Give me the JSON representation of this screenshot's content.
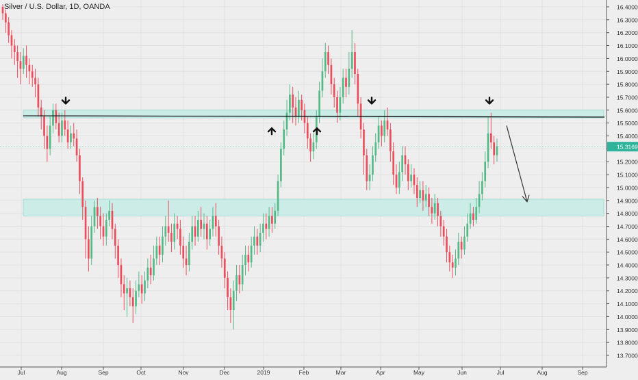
{
  "header": {
    "title": "Silver / U.S. Dollar, 1D, OANDA"
  },
  "chart_data": {
    "type": "candlestick",
    "y_ticks": [
      "16.40000",
      "16.30000",
      "16.20000",
      "16.10000",
      "16.00000",
      "15.90000",
      "15.80000",
      "15.70000",
      "15.60000",
      "15.50000",
      "15.40000",
      "15.30000",
      "15.20000",
      "15.10000",
      "15.00000",
      "14.90000",
      "14.80000",
      "14.70000",
      "14.60000",
      "14.50000",
      "14.40000",
      "14.30000",
      "14.20000",
      "14.10000",
      "14.00000",
      "13.90000",
      "13.80000",
      "13.70000"
    ],
    "x_ticks": [
      "Jul",
      "Aug",
      "Sep",
      "Oct",
      "Nov",
      "Dec",
      "2019",
      "Feb",
      "Mar",
      "Apr",
      "May",
      "Jun",
      "Jul",
      "Aug",
      "Sep"
    ],
    "ylim": [
      13.67,
      16.43
    ],
    "last_price_label": "15.31696",
    "last_price": 15.31696,
    "colors": {
      "up": "#53b987",
      "down": "#eb4d5c",
      "zone_fill": "#c9ece8",
      "zone_stroke": "#8fd3cc",
      "line": "#111111",
      "price_tag": "#2fb39a"
    },
    "zones": [
      {
        "name": "resistance-zone",
        "low": 15.54,
        "high": 15.6
      },
      {
        "name": "support-zone",
        "low": 14.78,
        "high": 14.91
      }
    ],
    "resistance_line": {
      "start": 15.556,
      "end": 15.546
    },
    "markers": [
      {
        "kind": "down-arrow",
        "date": "Aug",
        "price": 15.65
      },
      {
        "kind": "up-arrow",
        "date": "2019",
        "price": 15.46
      },
      {
        "kind": "up-arrow",
        "date": "Feb",
        "price": 15.46
      },
      {
        "kind": "down-arrow",
        "date": "Mar",
        "price": 15.65
      },
      {
        "kind": "down-arrow",
        "date": "Jun",
        "price": 15.65
      }
    ],
    "projection_arrow": {
      "from": 15.48,
      "to": 14.89
    },
    "candles": [
      [
        16.4,
        16.35,
        16.42,
        16.3
      ],
      [
        16.35,
        16.28,
        16.38,
        16.2
      ],
      [
        16.28,
        16.18,
        16.32,
        16.12
      ],
      [
        16.18,
        16.1,
        16.22,
        16.0
      ],
      [
        16.1,
        16.05,
        16.15,
        15.95
      ],
      [
        16.05,
        15.98,
        16.1,
        15.85
      ],
      [
        15.98,
        15.92,
        16.05,
        15.8
      ],
      [
        15.92,
        16.02,
        16.08,
        15.88
      ],
      [
        16.02,
        15.95,
        16.1,
        15.85
      ],
      [
        15.95,
        15.9,
        16.0,
        15.8
      ],
      [
        15.9,
        15.85,
        15.95,
        15.78
      ],
      [
        15.85,
        15.8,
        15.92,
        15.7
      ],
      [
        15.8,
        15.62,
        15.85,
        15.55
      ],
      [
        15.62,
        15.55,
        15.68,
        15.45
      ],
      [
        15.55,
        15.4,
        15.6,
        15.3
      ],
      [
        15.4,
        15.3,
        15.48,
        15.2
      ],
      [
        15.3,
        15.48,
        15.55,
        15.25
      ],
      [
        15.48,
        15.6,
        15.65,
        15.42
      ],
      [
        15.6,
        15.5,
        15.65,
        15.45
      ],
      [
        15.5,
        15.4,
        15.58,
        15.35
      ],
      [
        15.4,
        15.52,
        15.58,
        15.35
      ],
      [
        15.52,
        15.45,
        15.6,
        15.4
      ],
      [
        15.45,
        15.35,
        15.52,
        15.3
      ],
      [
        15.35,
        15.42,
        15.48,
        15.3
      ],
      [
        15.42,
        15.38,
        15.5,
        15.32
      ],
      [
        15.38,
        15.25,
        15.45,
        15.2
      ],
      [
        15.25,
        15.05,
        15.3,
        14.95
      ],
      [
        15.05,
        14.85,
        15.08,
        14.75
      ],
      [
        14.85,
        14.6,
        14.9,
        14.45
      ],
      [
        14.6,
        14.45,
        14.7,
        14.35
      ],
      [
        14.45,
        14.7,
        14.78,
        14.4
      ],
      [
        14.7,
        14.85,
        14.9,
        14.65
      ],
      [
        14.85,
        14.78,
        14.92,
        14.68
      ],
      [
        14.78,
        14.7,
        14.85,
        14.6
      ],
      [
        14.7,
        14.62,
        14.8,
        14.55
      ],
      [
        14.62,
        14.75,
        14.8,
        14.55
      ],
      [
        14.75,
        14.82,
        14.9,
        14.7
      ],
      [
        14.82,
        14.68,
        14.88,
        14.6
      ],
      [
        14.68,
        14.55,
        14.72,
        14.45
      ],
      [
        14.55,
        14.4,
        14.6,
        14.3
      ],
      [
        14.4,
        14.25,
        14.45,
        14.15
      ],
      [
        14.25,
        14.18,
        14.32,
        14.05
      ],
      [
        14.18,
        14.22,
        14.3,
        14.0
      ],
      [
        14.22,
        14.15,
        14.28,
        14.08
      ],
      [
        14.15,
        14.08,
        14.22,
        13.95
      ],
      [
        14.08,
        14.2,
        14.28,
        14.02
      ],
      [
        14.2,
        14.25,
        14.35,
        14.15
      ],
      [
        14.25,
        14.18,
        14.32,
        14.1
      ],
      [
        14.18,
        14.28,
        14.35,
        14.12
      ],
      [
        14.28,
        14.38,
        14.45,
        14.22
      ],
      [
        14.38,
        14.32,
        14.48,
        14.25
      ],
      [
        14.32,
        14.45,
        14.55,
        14.28
      ],
      [
        14.45,
        14.55,
        14.62,
        14.4
      ],
      [
        14.55,
        14.48,
        14.62,
        14.4
      ],
      [
        14.48,
        14.62,
        14.7,
        14.42
      ],
      [
        14.62,
        14.7,
        14.78,
        14.55
      ],
      [
        14.7,
        14.65,
        14.9,
        14.58
      ],
      [
        14.65,
        14.58,
        14.72,
        14.5
      ],
      [
        14.58,
        14.72,
        14.8,
        14.52
      ],
      [
        14.72,
        14.68,
        14.78,
        14.6
      ],
      [
        14.68,
        14.55,
        14.75,
        14.48
      ],
      [
        14.55,
        14.45,
        14.62,
        14.38
      ],
      [
        14.45,
        14.4,
        14.55,
        14.32
      ],
      [
        14.4,
        14.58,
        14.65,
        14.35
      ],
      [
        14.58,
        14.7,
        14.78,
        14.52
      ],
      [
        14.7,
        14.62,
        14.78,
        14.55
      ],
      [
        14.62,
        14.75,
        14.82,
        14.58
      ],
      [
        14.75,
        14.68,
        14.85,
        14.62
      ],
      [
        14.68,
        14.72,
        14.8,
        14.6
      ],
      [
        14.72,
        14.6,
        14.78,
        14.52
      ],
      [
        14.6,
        14.68,
        14.75,
        14.55
      ],
      [
        14.68,
        14.78,
        14.85,
        14.62
      ],
      [
        14.78,
        14.7,
        14.88,
        14.62
      ],
      [
        14.7,
        14.55,
        14.75,
        14.48
      ],
      [
        14.55,
        14.45,
        14.62,
        14.38
      ],
      [
        14.45,
        14.3,
        14.5,
        14.22
      ],
      [
        14.3,
        14.15,
        14.35,
        14.05
      ],
      [
        14.15,
        14.05,
        14.22,
        13.95
      ],
      [
        14.05,
        14.2,
        14.28,
        13.9
      ],
      [
        14.2,
        14.32,
        14.4,
        14.12
      ],
      [
        14.32,
        14.25,
        14.4,
        14.18
      ],
      [
        14.25,
        14.4,
        14.48,
        14.2
      ],
      [
        14.4,
        14.48,
        14.55,
        14.32
      ],
      [
        14.48,
        14.42,
        14.55,
        14.35
      ],
      [
        14.42,
        14.55,
        14.62,
        14.38
      ],
      [
        14.55,
        14.62,
        14.7,
        14.48
      ],
      [
        14.62,
        14.55,
        14.68,
        14.48
      ],
      [
        14.55,
        14.65,
        14.72,
        14.5
      ],
      [
        14.65,
        14.72,
        14.8,
        14.58
      ],
      [
        14.72,
        14.68,
        14.8,
        14.6
      ],
      [
        14.68,
        14.78,
        14.85,
        14.62
      ],
      [
        14.78,
        14.72,
        14.85,
        14.65
      ],
      [
        14.72,
        14.82,
        14.88,
        14.68
      ],
      [
        14.82,
        15.05,
        15.1,
        14.78
      ],
      [
        15.05,
        15.3,
        15.35,
        15.0
      ],
      [
        15.3,
        15.45,
        15.52,
        15.25
      ],
      [
        15.45,
        15.58,
        15.68,
        15.4
      ],
      [
        15.58,
        15.72,
        15.8,
        15.52
      ],
      [
        15.72,
        15.62,
        15.78,
        15.5
      ],
      [
        15.62,
        15.55,
        15.7,
        15.48
      ],
      [
        15.55,
        15.68,
        15.75,
        15.5
      ],
      [
        15.68,
        15.6,
        15.72,
        15.52
      ],
      [
        15.6,
        15.5,
        15.65,
        15.42
      ],
      [
        15.5,
        15.38,
        15.55,
        15.3
      ],
      [
        15.38,
        15.28,
        15.42,
        15.2
      ],
      [
        15.28,
        15.35,
        15.42,
        15.22
      ],
      [
        15.35,
        15.55,
        15.6,
        15.3
      ],
      [
        15.55,
        15.75,
        15.82,
        15.5
      ],
      [
        15.75,
        15.9,
        16.0,
        15.7
      ],
      [
        15.9,
        16.05,
        16.12,
        15.85
      ],
      [
        16.05,
        15.95,
        16.1,
        15.88
      ],
      [
        15.95,
        15.8,
        16.0,
        15.72
      ],
      [
        15.8,
        15.7,
        15.85,
        15.62
      ],
      [
        15.7,
        15.58,
        15.75,
        15.5
      ],
      [
        15.58,
        15.7,
        15.78,
        15.52
      ],
      [
        15.7,
        15.85,
        15.92,
        15.65
      ],
      [
        15.85,
        15.78,
        15.92,
        15.7
      ],
      [
        15.78,
        15.92,
        16.05,
        15.72
      ],
      [
        15.92,
        16.05,
        16.22,
        15.85
      ],
      [
        16.05,
        15.88,
        16.12,
        15.8
      ],
      [
        15.88,
        15.65,
        15.92,
        15.55
      ],
      [
        15.65,
        15.45,
        15.7,
        15.38
      ],
      [
        15.45,
        15.25,
        15.5,
        15.1
      ],
      [
        15.25,
        15.05,
        15.3,
        14.98
      ],
      [
        15.05,
        15.1,
        15.18,
        14.98
      ],
      [
        15.1,
        15.25,
        15.32,
        15.05
      ],
      [
        15.25,
        15.35,
        15.42,
        15.2
      ],
      [
        15.35,
        15.48,
        15.55,
        15.3
      ],
      [
        15.48,
        15.4,
        15.52,
        15.32
      ],
      [
        15.4,
        15.52,
        15.6,
        15.35
      ],
      [
        15.52,
        15.45,
        15.62,
        15.4
      ],
      [
        15.45,
        15.28,
        15.5,
        15.2
      ],
      [
        15.28,
        15.1,
        15.35,
        15.02
      ],
      [
        15.1,
        15.0,
        15.18,
        14.95
      ],
      [
        15.0,
        15.12,
        15.2,
        14.95
      ],
      [
        15.12,
        15.25,
        15.32,
        15.05
      ],
      [
        15.25,
        15.18,
        15.32,
        15.1
      ],
      [
        15.18,
        15.05,
        15.22,
        14.98
      ],
      [
        15.05,
        15.1,
        15.18,
        15.0
      ],
      [
        15.1,
        15.02,
        15.15,
        14.95
      ],
      [
        15.02,
        14.92,
        15.08,
        14.85
      ],
      [
        14.92,
        14.98,
        15.05,
        14.88
      ],
      [
        14.98,
        14.9,
        15.05,
        14.82
      ],
      [
        14.9,
        14.95,
        15.02,
        14.85
      ],
      [
        14.95,
        14.85,
        15.0,
        14.78
      ],
      [
        14.85,
        14.8,
        14.92,
        14.72
      ],
      [
        14.8,
        14.88,
        14.95,
        14.75
      ],
      [
        14.88,
        14.78,
        14.92,
        14.7
      ],
      [
        14.78,
        14.7,
        14.82,
        14.62
      ],
      [
        14.7,
        14.62,
        14.75,
        14.55
      ],
      [
        14.62,
        14.5,
        14.68,
        14.42
      ],
      [
        14.5,
        14.42,
        14.55,
        14.35
      ],
      [
        14.42,
        14.38,
        14.48,
        14.3
      ],
      [
        14.38,
        14.45,
        14.52,
        14.32
      ],
      [
        14.45,
        14.58,
        14.65,
        14.4
      ],
      [
        14.58,
        14.52,
        14.62,
        14.45
      ],
      [
        14.52,
        14.62,
        14.7,
        14.48
      ],
      [
        14.62,
        14.72,
        14.8,
        14.58
      ],
      [
        14.72,
        14.8,
        14.88,
        14.68
      ],
      [
        14.8,
        14.75,
        14.85,
        14.7
      ],
      [
        14.75,
        14.85,
        14.92,
        14.72
      ],
      [
        14.85,
        14.95,
        15.05,
        14.8
      ],
      [
        14.95,
        15.05,
        15.12,
        14.9
      ],
      [
        15.05,
        15.2,
        15.28,
        15.0
      ],
      [
        15.2,
        15.42,
        15.55,
        15.15
      ],
      [
        15.42,
        15.35,
        15.58,
        15.3
      ],
      [
        15.35,
        15.25,
        15.4,
        15.18
      ],
      [
        15.25,
        15.32,
        15.38,
        15.2
      ]
    ]
  }
}
